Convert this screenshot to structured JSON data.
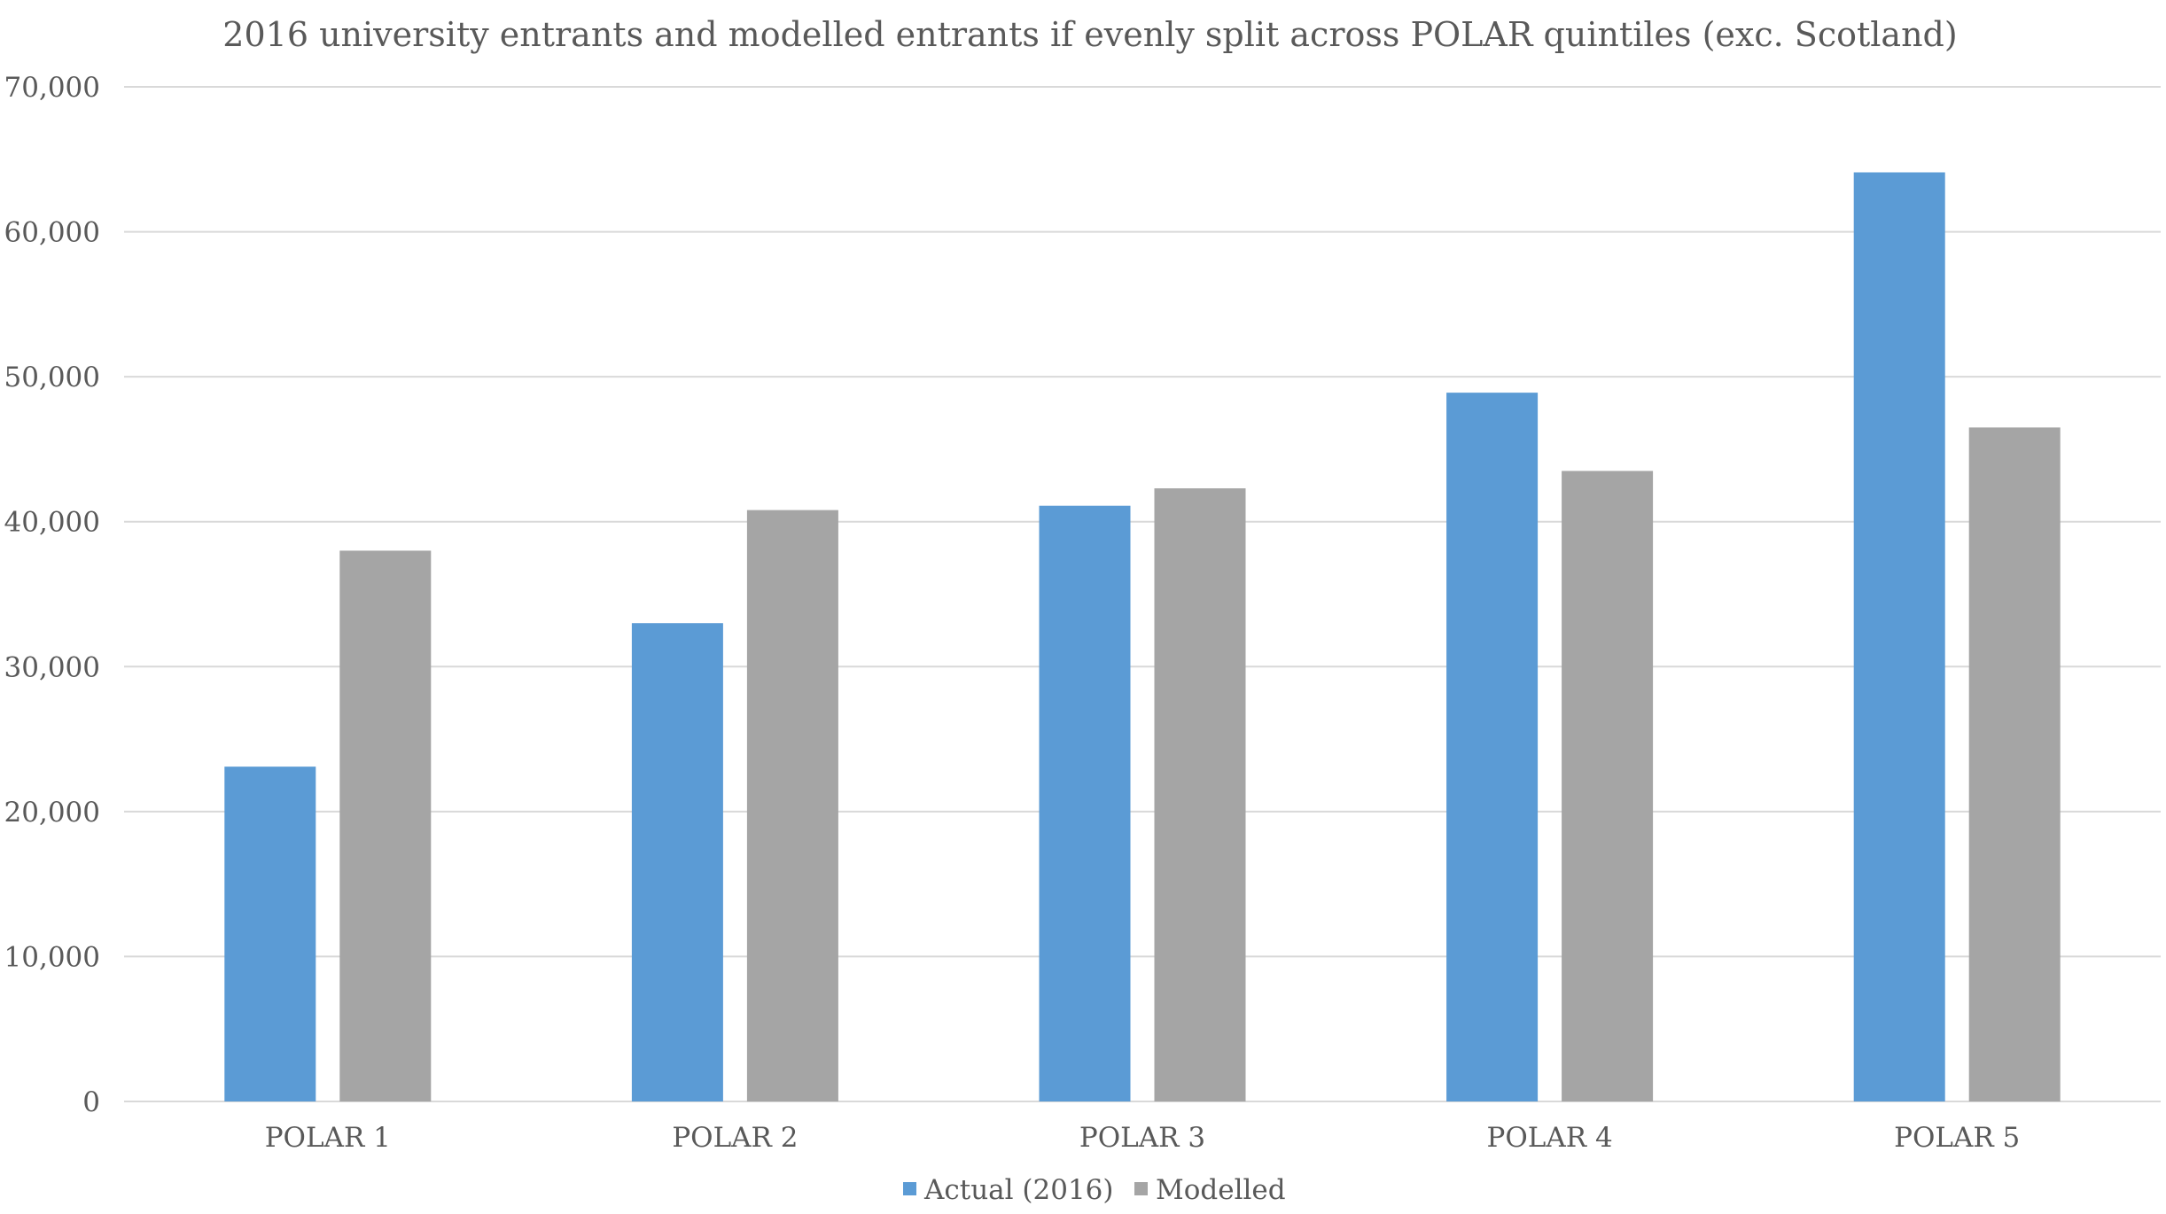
{
  "chart_data": {
    "type": "bar",
    "title": "2016 university entrants and modelled entrants if evenly split across POLAR quintiles (exc. Scotland)",
    "xlabel": "",
    "ylabel": "",
    "categories": [
      "POLAR 1",
      "POLAR 2",
      "POLAR 3",
      "POLAR 4",
      "POLAR 5"
    ],
    "series": [
      {
        "name": "Actual (2016)",
        "color": "#5b9bd5",
        "values": [
          23100,
          33000,
          41100,
          48900,
          64100
        ]
      },
      {
        "name": "Modelled",
        "color": "#a5a5a5",
        "values": [
          38000,
          40800,
          42300,
          43500,
          46500
        ]
      }
    ],
    "ylim": [
      0,
      70000
    ],
    "yticks": [
      0,
      10000,
      20000,
      30000,
      40000,
      50000,
      60000,
      70000
    ],
    "ytick_labels": [
      "0",
      "10,000",
      "20,000",
      "30,000",
      "40,000",
      "50,000",
      "60,000",
      "70,000"
    ],
    "grid": true,
    "legend_position": "bottom"
  }
}
